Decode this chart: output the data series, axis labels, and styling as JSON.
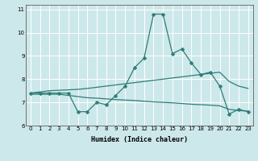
{
  "title": "",
  "xlabel": "Humidex (Indice chaleur)",
  "x_values": [
    0,
    1,
    2,
    3,
    4,
    5,
    6,
    7,
    8,
    9,
    10,
    11,
    12,
    13,
    14,
    15,
    16,
    17,
    18,
    19,
    20,
    21,
    22,
    23
  ],
  "line1_y": [
    7.4,
    7.4,
    7.4,
    7.4,
    7.4,
    6.6,
    6.6,
    7.0,
    6.9,
    7.3,
    7.7,
    8.5,
    8.9,
    10.8,
    10.8,
    9.1,
    9.3,
    8.7,
    8.2,
    8.3,
    7.7,
    6.5,
    6.7,
    6.6
  ],
  "line2_y": [
    7.4,
    7.45,
    7.5,
    7.52,
    7.54,
    7.56,
    7.6,
    7.65,
    7.7,
    7.75,
    7.8,
    7.85,
    7.9,
    7.95,
    8.0,
    8.05,
    8.1,
    8.15,
    8.2,
    8.25,
    8.3,
    7.9,
    7.7,
    7.6
  ],
  "line3_y": [
    7.35,
    7.35,
    7.35,
    7.35,
    7.3,
    7.25,
    7.2,
    7.18,
    7.15,
    7.12,
    7.1,
    7.08,
    7.05,
    7.02,
    7.0,
    6.98,
    6.95,
    6.92,
    6.9,
    6.88,
    6.85,
    6.7,
    6.65,
    6.62
  ],
  "color": "#2d7d78",
  "bg_color": "#cde8ea",
  "grid_color": "#ffffff",
  "ylim": [
    6.0,
    11.2
  ],
  "yticks": [
    6,
    7,
    8,
    9,
    10,
    11
  ],
  "xlim": [
    -0.5,
    23.5
  ],
  "marker": "D",
  "markersize": 2.5,
  "tick_fontsize": 5,
  "xlabel_fontsize": 6,
  "linewidth": 0.9
}
